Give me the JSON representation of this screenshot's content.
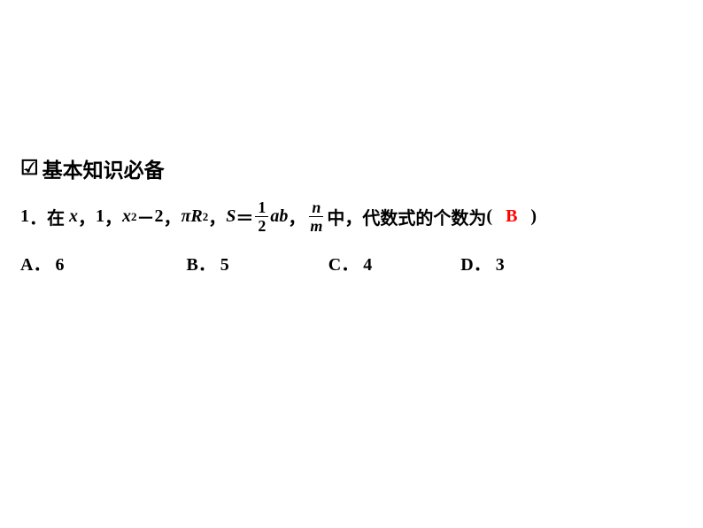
{
  "section": {
    "checkbox": "☑",
    "title": "基本知识必备"
  },
  "question": {
    "number": "1",
    "prefix": "．在",
    "expr1_var": "x",
    "comma": "，",
    "expr2": "1",
    "expr3_var": "x",
    "expr3_sup": "2",
    "expr3_minus": "－",
    "expr3_const": "2",
    "expr4_pi": "π",
    "expr4_var": "R",
    "expr4_sup": "2",
    "expr5_var": "S",
    "expr5_eq": "＝",
    "expr5_frac_num": "1",
    "expr5_frac_den": "2",
    "expr5_ab": "ab",
    "expr6_frac_num": "n",
    "expr6_frac_den": "m",
    "middle": "中，代数式的个数为",
    "paren_open": "(",
    "answer": "B",
    "paren_close": ")"
  },
  "options": {
    "a_label": "A．",
    "a_value": "6",
    "b_label": "B．",
    "b_value": "5",
    "c_label": "C．",
    "c_value": "4",
    "d_label": "D．",
    "d_value": "3"
  },
  "colors": {
    "answer": "#ff0000",
    "text": "#000000",
    "background": "#ffffff"
  }
}
